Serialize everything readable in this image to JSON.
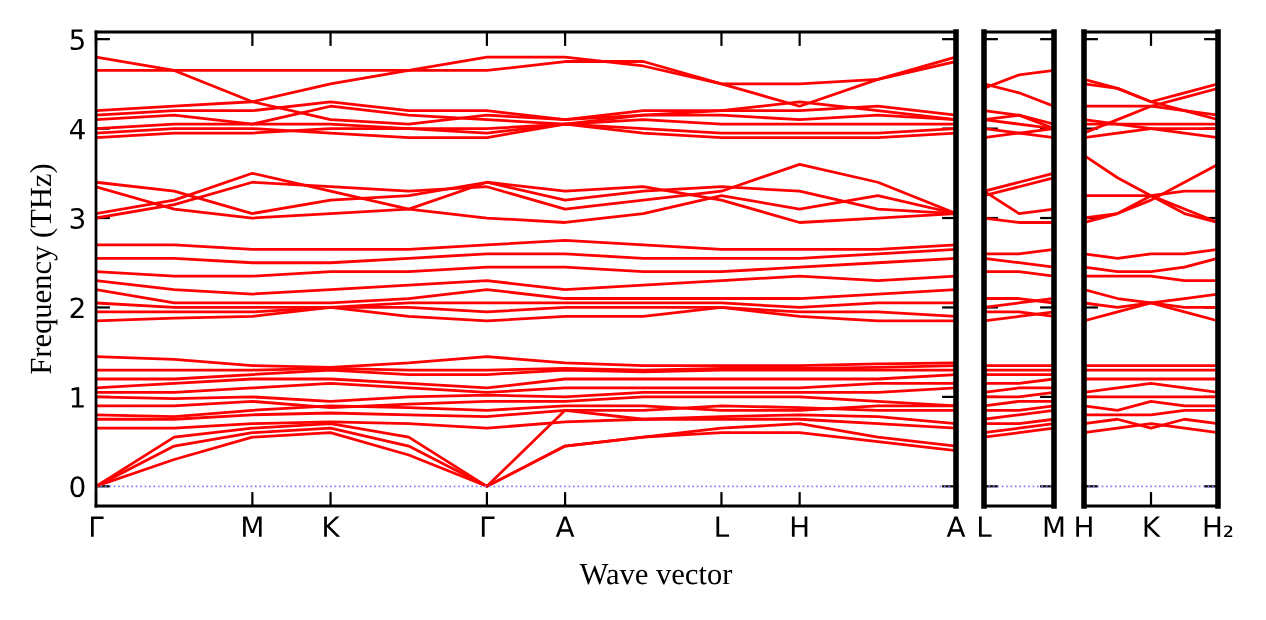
{
  "chart_data": [
    {
      "type": "line",
      "xlabel": "Wave vector",
      "ylabel": "Frequency (THz)",
      "categories": [
        "Γ",
        null,
        "M",
        "K",
        null,
        "Γ",
        "A",
        null,
        "L",
        "H",
        null,
        "A"
      ],
      "ylim": [
        -0.22,
        5.08
      ],
      "yticks": [
        0,
        1,
        2,
        3,
        4,
        5
      ],
      "ref_lines": [
        {
          "axis": "y",
          "value": 0,
          "color": "#8080ff",
          "line_style": "dotted"
        }
      ],
      "series": [
        {
          "color": "#ff0000",
          "values": [
            0,
            0.3,
            0.55,
            0.6,
            0.35,
            0,
            0.45,
            0.55,
            0.6,
            0.6,
            0.5,
            0.4
          ]
        },
        {
          "color": "#ff0000",
          "values": [
            0,
            0.45,
            0.6,
            0.65,
            0.45,
            0,
            0.45,
            0.55,
            0.65,
            0.7,
            0.55,
            0.45
          ]
        },
        {
          "color": "#ff0000",
          "values": [
            0,
            0.55,
            0.65,
            0.7,
            0.55,
            0,
            0.85,
            0.75,
            0.75,
            0.75,
            0.7,
            0.65
          ]
        },
        {
          "color": "#ff0000",
          "values": [
            0.65,
            0.65,
            0.7,
            0.72,
            0.7,
            0.65,
            0.72,
            0.75,
            0.78,
            0.8,
            0.78,
            0.7
          ]
        },
        {
          "color": "#ff0000",
          "values": [
            0.75,
            0.75,
            0.8,
            0.82,
            0.8,
            0.78,
            0.85,
            0.85,
            0.9,
            0.88,
            0.85,
            0.85
          ]
        },
        {
          "color": "#ff0000",
          "values": [
            0.8,
            0.78,
            0.85,
            0.9,
            0.88,
            0.85,
            0.9,
            0.9,
            0.85,
            0.85,
            0.9,
            0.9
          ]
        },
        {
          "color": "#ff0000",
          "values": [
            0.9,
            0.9,
            0.95,
            0.88,
            0.92,
            0.95,
            0.95,
            1.0,
            1.0,
            1.0,
            0.95,
            0.9
          ]
        },
        {
          "color": "#ff0000",
          "values": [
            1.0,
            0.98,
            1.0,
            0.95,
            1.0,
            1.02,
            1.0,
            1.05,
            1.05,
            1.05,
            1.05,
            1.1
          ]
        },
        {
          "color": "#ff0000",
          "values": [
            1.05,
            1.05,
            1.1,
            1.15,
            1.1,
            1.05,
            1.1,
            1.1,
            1.1,
            1.1,
            1.15,
            1.15
          ]
        },
        {
          "color": "#ff0000",
          "values": [
            1.1,
            1.15,
            1.2,
            1.2,
            1.15,
            1.1,
            1.2,
            1.2,
            1.2,
            1.2,
            1.2,
            1.25
          ]
        },
        {
          "color": "#ff0000",
          "values": [
            1.2,
            1.2,
            1.25,
            1.3,
            1.25,
            1.25,
            1.3,
            1.28,
            1.3,
            1.3,
            1.3,
            1.3
          ]
        },
        {
          "color": "#ff0000",
          "values": [
            1.3,
            1.3,
            1.3,
            1.32,
            1.3,
            1.3,
            1.32,
            1.3,
            1.32,
            1.32,
            1.33,
            1.35
          ]
        },
        {
          "color": "#ff0000",
          "values": [
            1.45,
            1.42,
            1.35,
            1.33,
            1.38,
            1.45,
            1.38,
            1.35,
            1.35,
            1.35,
            1.37,
            1.38
          ]
        },
        {
          "color": "#ff0000",
          "values": [
            1.85,
            1.88,
            1.9,
            2.0,
            1.9,
            1.85,
            1.9,
            1.9,
            2.0,
            1.9,
            1.85,
            1.85
          ]
        },
        {
          "color": "#ff0000",
          "values": [
            1.95,
            1.95,
            1.95,
            2.0,
            2.0,
            1.95,
            2.0,
            2.0,
            2.0,
            1.95,
            1.95,
            1.9
          ]
        },
        {
          "color": "#ff0000",
          "values": [
            2.05,
            2.0,
            2.0,
            2.0,
            2.05,
            2.05,
            2.05,
            2.05,
            2.05,
            2.0,
            2.05,
            2.05
          ]
        },
        {
          "color": "#ff0000",
          "values": [
            2.2,
            2.05,
            2.05,
            2.05,
            2.1,
            2.2,
            2.1,
            2.1,
            2.1,
            2.1,
            2.15,
            2.2
          ]
        },
        {
          "color": "#ff0000",
          "values": [
            2.3,
            2.2,
            2.15,
            2.2,
            2.25,
            2.3,
            2.2,
            2.25,
            2.3,
            2.35,
            2.3,
            2.35
          ]
        },
        {
          "color": "#ff0000",
          "values": [
            2.4,
            2.35,
            2.35,
            2.4,
            2.4,
            2.45,
            2.45,
            2.4,
            2.4,
            2.45,
            2.5,
            2.55
          ]
        },
        {
          "color": "#ff0000",
          "values": [
            2.55,
            2.55,
            2.5,
            2.5,
            2.55,
            2.6,
            2.6,
            2.55,
            2.55,
            2.55,
            2.6,
            2.65
          ]
        },
        {
          "color": "#ff0000",
          "values": [
            2.7,
            2.7,
            2.65,
            2.65,
            2.65,
            2.7,
            2.75,
            2.7,
            2.65,
            2.65,
            2.65,
            2.7
          ]
        },
        {
          "color": "#ff0000",
          "values": [
            3.0,
            3.15,
            3.4,
            3.35,
            3.3,
            3.35,
            3.1,
            3.2,
            3.3,
            3.6,
            3.4,
            3.05
          ]
        },
        {
          "color": "#ff0000",
          "values": [
            3.05,
            3.2,
            3.5,
            3.3,
            3.1,
            3.0,
            2.95,
            3.05,
            3.25,
            3.1,
            3.25,
            3.05
          ]
        },
        {
          "color": "#ff0000",
          "values": [
            3.35,
            3.1,
            3.0,
            3.05,
            3.1,
            3.4,
            3.2,
            3.3,
            3.35,
            3.3,
            3.1,
            3.05
          ]
        },
        {
          "color": "#ff0000",
          "values": [
            3.4,
            3.3,
            3.05,
            3.2,
            3.25,
            3.4,
            3.3,
            3.35,
            3.2,
            2.95,
            3.0,
            3.05
          ]
        },
        {
          "color": "#ff0000",
          "values": [
            3.9,
            3.95,
            3.95,
            4.0,
            4.0,
            3.95,
            4.05,
            4.0,
            3.95,
            3.95,
            3.95,
            4.0
          ]
        },
        {
          "color": "#ff0000",
          "values": [
            3.95,
            4.0,
            4.0,
            3.95,
            3.9,
            3.9,
            4.05,
            3.95,
            3.9,
            3.9,
            3.9,
            3.95
          ]
        },
        {
          "color": "#ff0000",
          "values": [
            4.0,
            4.05,
            4.05,
            4.05,
            4.0,
            4.0,
            4.05,
            4.1,
            4.05,
            4.05,
            4.05,
            4.05
          ]
        },
        {
          "color": "#ff0000",
          "values": [
            4.1,
            4.15,
            4.05,
            4.25,
            4.15,
            4.1,
            4.05,
            4.15,
            4.15,
            4.1,
            4.15,
            4.1
          ]
        },
        {
          "color": "#ff0000",
          "values": [
            4.15,
            4.2,
            4.2,
            4.3,
            4.2,
            4.2,
            4.1,
            4.2,
            4.2,
            4.3,
            4.2,
            4.1
          ]
        },
        {
          "color": "#ff0000",
          "values": [
            4.2,
            4.25,
            4.3,
            4.1,
            4.05,
            4.15,
            4.1,
            4.15,
            4.2,
            4.2,
            4.25,
            4.15
          ]
        },
        {
          "color": "#ff0000",
          "values": [
            4.65,
            4.65,
            4.65,
            4.65,
            4.65,
            4.65,
            4.75,
            4.75,
            4.5,
            4.5,
            4.55,
            4.75
          ]
        },
        {
          "color": "#ff0000",
          "values": [
            4.8,
            4.65,
            4.3,
            4.5,
            4.65,
            4.8,
            4.8,
            4.7,
            4.5,
            4.25,
            4.55,
            4.8
          ]
        }
      ]
    },
    {
      "type": "line",
      "tick_labels": "x",
      "categories": [
        "L",
        null,
        "M"
      ],
      "ylim": [
        -0.22,
        5.08
      ],
      "yticks": [
        {
          "value": 0,
          "label": null
        },
        {
          "value": 1,
          "label": null
        },
        {
          "value": 2,
          "label": null
        },
        {
          "value": 3,
          "label": null
        },
        {
          "value": 4,
          "label": null
        },
        {
          "value": 5,
          "label": null
        }
      ],
      "ref_lines": [
        {
          "axis": "y",
          "value": 0,
          "color": "#8080ff",
          "line_style": "dotted"
        }
      ],
      "series": [
        {
          "color": "#ff0000",
          "values": [
            0.55,
            0.6,
            0.65
          ]
        },
        {
          "color": "#ff0000",
          "values": [
            0.6,
            0.65,
            0.7
          ]
        },
        {
          "color": "#ff0000",
          "values": [
            0.7,
            0.7,
            0.75
          ]
        },
        {
          "color": "#ff0000",
          "values": [
            0.75,
            0.8,
            0.85
          ]
        },
        {
          "color": "#ff0000",
          "values": [
            0.85,
            0.85,
            0.9
          ]
        },
        {
          "color": "#ff0000",
          "values": [
            0.9,
            0.95,
            0.95
          ]
        },
        {
          "color": "#ff0000",
          "values": [
            1.0,
            1.0,
            1.05
          ]
        },
        {
          "color": "#ff0000",
          "values": [
            1.05,
            1.1,
            1.1
          ]
        },
        {
          "color": "#ff0000",
          "values": [
            1.15,
            1.15,
            1.2
          ]
        },
        {
          "color": "#ff0000",
          "values": [
            1.25,
            1.25,
            1.25
          ]
        },
        {
          "color": "#ff0000",
          "values": [
            1.3,
            1.3,
            1.3
          ]
        },
        {
          "color": "#ff0000",
          "values": [
            1.35,
            1.35,
            1.35
          ]
        },
        {
          "color": "#ff0000",
          "values": [
            1.85,
            1.9,
            1.95
          ]
        },
        {
          "color": "#ff0000",
          "values": [
            1.95,
            1.95,
            1.9
          ]
        },
        {
          "color": "#ff0000",
          "values": [
            2.0,
            2.05,
            2.1
          ]
        },
        {
          "color": "#ff0000",
          "values": [
            2.1,
            2.1,
            2.05
          ]
        },
        {
          "color": "#ff0000",
          "values": [
            2.4,
            2.4,
            2.35
          ]
        },
        {
          "color": "#ff0000",
          "values": [
            2.55,
            2.5,
            2.45
          ]
        },
        {
          "color": "#ff0000",
          "values": [
            2.6,
            2.6,
            2.65
          ]
        },
        {
          "color": "#ff0000",
          "values": [
            3.0,
            2.95,
            2.95
          ]
        },
        {
          "color": "#ff0000",
          "values": [
            3.3,
            3.05,
            3.1
          ]
        },
        {
          "color": "#ff0000",
          "values": [
            3.3,
            3.4,
            3.5
          ]
        },
        {
          "color": "#ff0000",
          "values": [
            3.25,
            3.35,
            3.45
          ]
        },
        {
          "color": "#ff0000",
          "values": [
            3.9,
            3.95,
            4.0
          ]
        },
        {
          "color": "#ff0000",
          "values": [
            4.0,
            3.95,
            3.9
          ]
        },
        {
          "color": "#ff0000",
          "values": [
            4.1,
            4.05,
            4.0
          ]
        },
        {
          "color": "#ff0000",
          "values": [
            4.1,
            4.15,
            4.05
          ]
        },
        {
          "color": "#ff0000",
          "values": [
            4.2,
            4.15,
            4.0
          ]
        },
        {
          "color": "#ff0000",
          "values": [
            4.45,
            4.6,
            4.65
          ]
        },
        {
          "color": "#ff0000",
          "values": [
            4.5,
            4.4,
            4.25
          ]
        }
      ]
    },
    {
      "type": "line",
      "tick_labels": "x",
      "categories": [
        "H",
        null,
        "K",
        null,
        "H₂"
      ],
      "ylim": [
        -0.22,
        5.08
      ],
      "yticks": [
        {
          "value": 0,
          "label": null
        },
        {
          "value": 1,
          "label": null
        },
        {
          "value": 2,
          "label": null
        },
        {
          "value": 3,
          "label": null
        },
        {
          "value": 4,
          "label": null
        },
        {
          "value": 5,
          "label": null
        }
      ],
      "ref_lines": [
        {
          "axis": "y",
          "value": 0,
          "color": "#8080ff",
          "line_style": "dotted"
        }
      ],
      "series": [
        {
          "color": "#ff0000",
          "values": [
            0.6,
            0.65,
            0.7,
            0.65,
            0.6
          ]
        },
        {
          "color": "#ff0000",
          "values": [
            0.7,
            0.75,
            0.65,
            0.75,
            0.7
          ]
        },
        {
          "color": "#ff0000",
          "values": [
            0.8,
            0.8,
            0.8,
            0.85,
            0.85
          ]
        },
        {
          "color": "#ff0000",
          "values": [
            0.9,
            0.85,
            0.95,
            0.9,
            0.9
          ]
        },
        {
          "color": "#ff0000",
          "values": [
            1.0,
            1.0,
            1.0,
            1.0,
            1.0
          ]
        },
        {
          "color": "#ff0000",
          "values": [
            1.05,
            1.1,
            1.15,
            1.1,
            1.05
          ]
        },
        {
          "color": "#ff0000",
          "values": [
            1.2,
            1.2,
            1.2,
            1.2,
            1.2
          ]
        },
        {
          "color": "#ff0000",
          "values": [
            1.3,
            1.3,
            1.3,
            1.3,
            1.3
          ]
        },
        {
          "color": "#ff0000",
          "values": [
            1.35,
            1.35,
            1.35,
            1.35,
            1.35
          ]
        },
        {
          "color": "#ff0000",
          "values": [
            1.85,
            1.95,
            2.05,
            1.95,
            1.85
          ]
        },
        {
          "color": "#ff0000",
          "values": [
            2.05,
            2.0,
            2.05,
            2.1,
            2.15
          ]
        },
        {
          "color": "#ff0000",
          "values": [
            2.2,
            2.1,
            2.05,
            2.0,
            2.0
          ]
        },
        {
          "color": "#ff0000",
          "values": [
            2.35,
            2.35,
            2.35,
            2.3,
            2.3
          ]
        },
        {
          "color": "#ff0000",
          "values": [
            2.45,
            2.4,
            2.4,
            2.45,
            2.55
          ]
        },
        {
          "color": "#ff0000",
          "values": [
            2.6,
            2.55,
            2.6,
            2.6,
            2.65
          ]
        },
        {
          "color": "#ff0000",
          "values": [
            3.0,
            3.05,
            3.25,
            3.1,
            2.95
          ]
        },
        {
          "color": "#ff0000",
          "values": [
            3.7,
            3.45,
            3.25,
            3.05,
            2.95
          ]
        },
        {
          "color": "#ff0000",
          "values": [
            3.25,
            3.25,
            3.25,
            3.3,
            3.3
          ]
        },
        {
          "color": "#ff0000",
          "values": [
            2.95,
            3.05,
            3.2,
            3.4,
            3.6
          ]
        },
        {
          "color": "#ff0000",
          "values": [
            3.9,
            3.95,
            4.0,
            4.0,
            4.0
          ]
        },
        {
          "color": "#ff0000",
          "values": [
            4.05,
            4.05,
            4.05,
            4.05,
            4.05
          ]
        },
        {
          "color": "#ff0000",
          "values": [
            4.1,
            4.05,
            4.0,
            3.95,
            3.9
          ]
        },
        {
          "color": "#ff0000",
          "values": [
            4.25,
            4.25,
            4.25,
            4.2,
            4.1
          ]
        },
        {
          "color": "#ff0000",
          "values": [
            4.5,
            4.45,
            4.3,
            4.2,
            4.15
          ]
        },
        {
          "color": "#ff0000",
          "values": [
            4.55,
            4.45,
            4.3,
            4.4,
            4.5
          ]
        },
        {
          "color": "#ff0000",
          "values": [
            3.95,
            4.1,
            4.25,
            4.35,
            4.45
          ]
        }
      ]
    }
  ]
}
